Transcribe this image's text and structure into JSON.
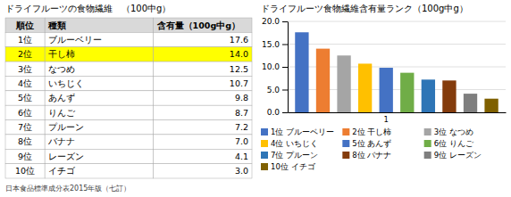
{
  "chart_data": [
    {
      "type": "table",
      "title": "ドライフルーツの食物繊維　（100中g）",
      "columns": [
        "順位",
        "種類",
        "含有量（100g中g）"
      ],
      "rows": [
        [
          "1位",
          "ブルーベリー",
          "17.6"
        ],
        [
          "2位",
          "干し柿",
          "14.0"
        ],
        [
          "3位",
          "なつめ",
          "12.5"
        ],
        [
          "4位",
          "いちじく",
          "10.7"
        ],
        [
          "5位",
          "あんず",
          "9.8"
        ],
        [
          "6位",
          "りんご",
          "8.7"
        ],
        [
          "7位",
          "プルーン",
          "7.2"
        ],
        [
          "8位",
          "バナナ",
          "7.0"
        ],
        [
          "9位",
          "レーズン",
          "4.1"
        ],
        [
          "10位",
          "イチゴ",
          "3.0"
        ]
      ],
      "colors": [
        "#FFFFFF",
        "#FFFF00",
        "#FFFFFF",
        "#FFFFFF",
        "#FFFFFF",
        "#FFFFFF",
        "#FFFFFF",
        "#FFFFFF",
        "#FFFFFF",
        "#FFFFFF"
      ],
      "annotations": [
        {
          "text": "日本食品標準成分表2015年版（七訂）"
        }
      ]
    },
    {
      "type": "bar",
      "title": "ドライフルーツ食物繊維含有量ランク（100g中g）",
      "categories": [
        "1位 ブルーベリー",
        "2位 干し柿",
        "3位 なつめ",
        "4位 いちじく",
        "5位 あんず",
        "6位 りんご",
        "7位 プルーン",
        "8位 バナナ",
        "9位 レーズン",
        "10位 イチゴ"
      ],
      "values": [
        17.6,
        14.0,
        12.5,
        10.7,
        9.8,
        8.7,
        7.2,
        7.0,
        4.1,
        3.0
      ],
      "colors": [
        "#4472C4",
        "#ED7D31",
        "#A5A5A5",
        "#FFC000",
        "#4472C4",
        "#70AD47",
        "#2E75B6",
        "#843C0C",
        "#7F7F7F",
        "#7F6000"
      ],
      "ylim": [
        0,
        20.0
      ],
      "yticks": [
        {
          "value": 0,
          "label": "0.0"
        },
        {
          "value": 5,
          "label": "5.0"
        },
        {
          "value": 10,
          "label": "10.0"
        },
        {
          "value": 15,
          "label": "15.0"
        },
        {
          "value": 20,
          "label": "20.0"
        }
      ],
      "grid": true,
      "legend": "bottom",
      "tick_labels": "y",
      "annotations": [
        {
          "text": "1",
          "x": "5位 あんず"
        }
      ]
    }
  ]
}
